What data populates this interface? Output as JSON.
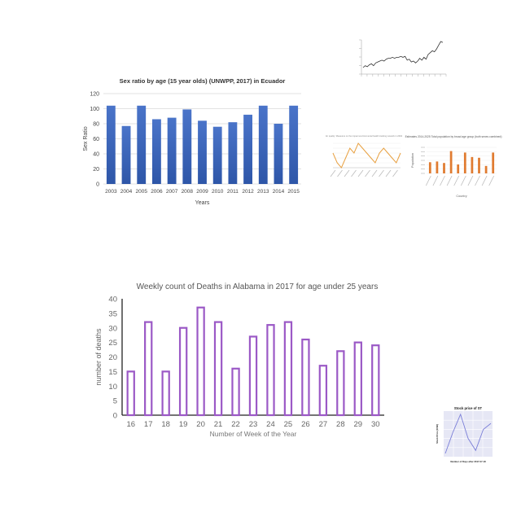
{
  "chart_data": [
    {
      "type": "bar",
      "title": "Sex ratio by age (15 year olds) (UNWPP, 2017) in Ecuador",
      "xlabel": "Years",
      "ylabel": "Sex Ratio",
      "categories": [
        "2003",
        "2004",
        "2005",
        "2006",
        "2007",
        "2008",
        "2009",
        "2010",
        "2011",
        "2012",
        "2013",
        "2014",
        "2015"
      ],
      "values": [
        104,
        77,
        104,
        86,
        88,
        99,
        84,
        76,
        82,
        92,
        104,
        80,
        104
      ],
      "ylim": [
        0,
        120
      ],
      "yticks": [
        "0",
        "20",
        "40",
        "60",
        "80",
        "100",
        "120"
      ],
      "grid": true,
      "colors": {
        "bar": "#4a74c9",
        "bar_dark": "#2e56a8"
      }
    },
    {
      "type": "bar",
      "title": "Weekly count of Deaths in Alabama in 2017 for age under 25 years",
      "xlabel": "Number of Week of the Year",
      "ylabel": "number of deaths",
      "categories": [
        "16",
        "17",
        "18",
        "19",
        "20",
        "21",
        "22",
        "23",
        "24",
        "25",
        "26",
        "27",
        "28",
        "29",
        "30"
      ],
      "values": [
        15,
        32,
        15,
        30,
        37,
        32,
        16,
        27,
        31,
        32,
        26,
        17,
        22,
        25,
        24
      ],
      "ylim": [
        0,
        40
      ],
      "yticks": [
        "0",
        "5",
        "10",
        "15",
        "20",
        "25",
        "30",
        "35",
        "40"
      ],
      "grid": false,
      "colors": {
        "bar_outline": "#9b59c6",
        "bar_fill": "#ffffff"
      }
    },
    {
      "type": "line",
      "title": "",
      "values": [
        8,
        10,
        9,
        11,
        12,
        10,
        13,
        14,
        15,
        16,
        15,
        17,
        18,
        18,
        19,
        18,
        19,
        19,
        20,
        19,
        20,
        16,
        17,
        14,
        15,
        13,
        15,
        18,
        16,
        19,
        17,
        22,
        24,
        26,
        25,
        28,
        32,
        36,
        35
      ],
      "colors": {
        "line": "#333333"
      }
    },
    {
      "type": "line",
      "title": "Air quality: Measures on the impact environmental health tracking network in 2004",
      "values": [
        7,
        5,
        4,
        6,
        8,
        7,
        9,
        8,
        7,
        6,
        5,
        7,
        8,
        7,
        6,
        5,
        7
      ],
      "colors": {
        "line": "#e8a040"
      }
    },
    {
      "type": "bar",
      "title": "Estimates 2014-2025 Total population by broad age group (both sexes combined)",
      "xlabel": "Country",
      "ylabel": "Population",
      "values": [
        1500,
        1600,
        1400,
        3000,
        1200,
        2800,
        2200,
        2100,
        1000,
        2800
      ],
      "colors": {
        "bar": "#e07b30"
      }
    },
    {
      "type": "line",
      "title": "Stock price of ST",
      "xlabel": "Number of Days after 2017-07-18",
      "ylabel": "Stock Price (USD)",
      "values": [
        5,
        12,
        18,
        10,
        6,
        13,
        15
      ],
      "colors": {
        "line": "#7b7fd8",
        "background": "#e6e7f5"
      }
    }
  ]
}
